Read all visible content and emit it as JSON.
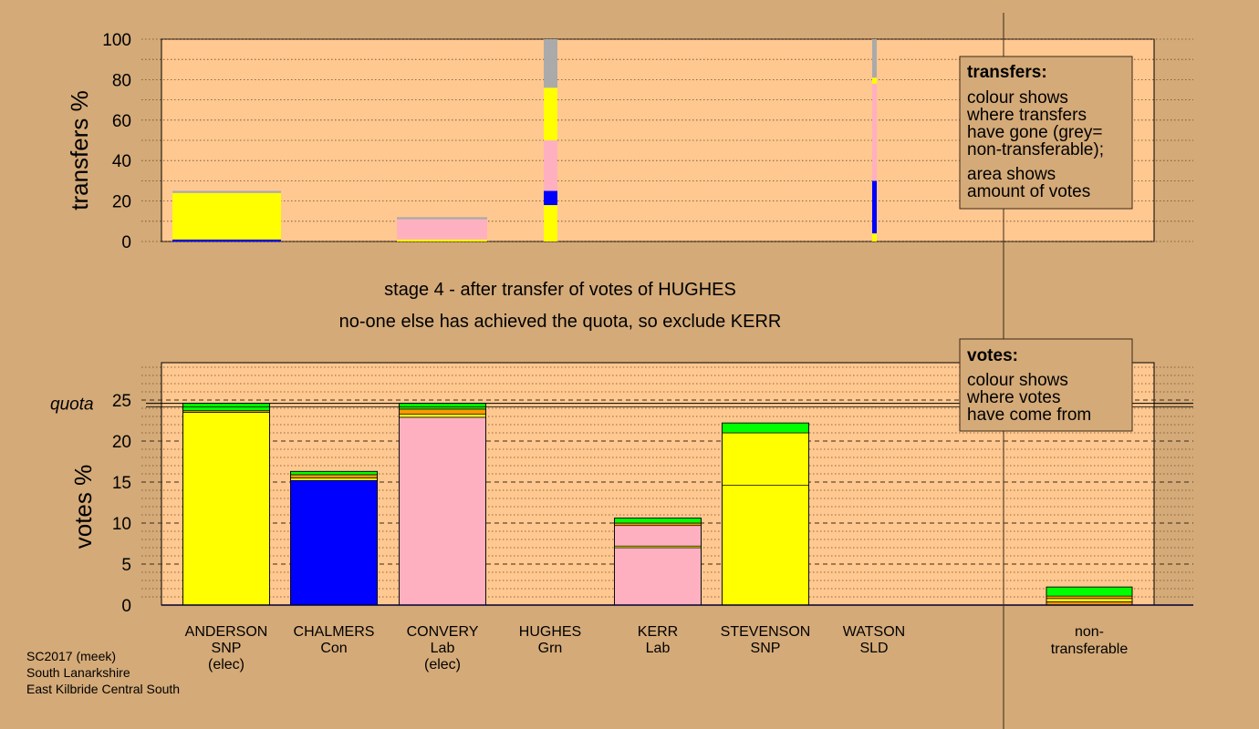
{
  "colors": {
    "background": "#d4aa78",
    "panel": "#ffc890",
    "SNP": "#ffff00",
    "Con": "#0000ff",
    "Lab": "#ffb0c0",
    "Grn": "#00ff00",
    "SLD": "#ff9900",
    "nontransferable": "#aaaaaa"
  },
  "heading": {
    "stage": "stage 4 - after transfer of votes of HUGHES",
    "action": "no-one else has achieved the quota, so exclude KERR"
  },
  "footer": [
    "SC2017 (meek)",
    "South Lanarkshire",
    "East Kilbride Central South"
  ],
  "legend_transfers": {
    "title": "transfers:",
    "lines1": [
      "colour shows",
      "where transfers",
      "have gone (grey=",
      "non-transferable);"
    ],
    "lines2": [
      "area shows",
      "amount of votes"
    ]
  },
  "legend_votes": {
    "title": "votes:",
    "lines": [
      "colour shows",
      "where votes",
      "have come from"
    ]
  },
  "chart_data": [
    {
      "type": "bar",
      "name": "transfers",
      "ylabel": "transfers %",
      "ylim": [
        0,
        100
      ],
      "yticks": [
        0,
        20,
        40,
        60,
        80,
        100
      ],
      "bars": [
        {
          "candidate": "ANDERSON",
          "segments": [
            {
              "party": "Con",
              "value": 1
            },
            {
              "party": "SNP",
              "value": 23
            },
            {
              "party": "nontransferable",
              "value": 1
            }
          ]
        },
        {
          "candidate": "CONVERY",
          "segments": [
            {
              "party": "SNP",
              "value": 1
            },
            {
              "party": "Lab",
              "value": 10
            },
            {
              "party": "nontransferable",
              "value": 1
            }
          ]
        },
        {
          "candidate": "HUGHES",
          "segments": [
            {
              "party": "SNP",
              "value": 18
            },
            {
              "party": "Con",
              "value": 7
            },
            {
              "party": "Lab",
              "value": 25
            },
            {
              "party": "SNP",
              "value": 26
            },
            {
              "party": "nontransferable",
              "value": 24
            }
          ]
        },
        {
          "candidate": "WATSON",
          "segments": [
            {
              "party": "SNP",
              "value": 4
            },
            {
              "party": "Con",
              "value": 26
            },
            {
              "party": "Lab",
              "value": 48
            },
            {
              "party": "SNP",
              "value": 3
            },
            {
              "party": "nontransferable",
              "value": 19
            }
          ]
        }
      ]
    },
    {
      "type": "bar",
      "name": "votes",
      "ylabel": "votes %",
      "ylim": [
        0,
        28
      ],
      "yticks": [
        0,
        5,
        10,
        15,
        20,
        25
      ],
      "quota": 24.6,
      "quota_label": "quota",
      "candidates": [
        {
          "name": "ANDERSON",
          "party": "SNP",
          "status": "(elec)",
          "segments": [
            {
              "party": "SNP",
              "value": 23.5
            },
            {
              "party": "SLD",
              "value": 0.2
            },
            {
              "party": "Grn",
              "value": 0.9
            }
          ]
        },
        {
          "name": "CHALMERS",
          "party": "Con",
          "status": "",
          "segments": [
            {
              "party": "Con",
              "value": 15.2
            },
            {
              "party": "SNP",
              "value": 0.3
            },
            {
              "party": "SLD",
              "value": 0.4
            },
            {
              "party": "Grn",
              "value": 0.4
            }
          ]
        },
        {
          "name": "CONVERY",
          "party": "Lab",
          "status": "(elec)",
          "segments": [
            {
              "party": "Lab",
              "value": 22.9
            },
            {
              "party": "SNP",
              "value": 0.4
            },
            {
              "party": "SLD",
              "value": 0.6
            },
            {
              "party": "Grn",
              "value": 0.7
            }
          ]
        },
        {
          "name": "HUGHES",
          "party": "Grn",
          "status": "",
          "segments": []
        },
        {
          "name": "KERR",
          "party": "Lab",
          "status": "",
          "segments": [
            {
              "party": "Lab",
              "value": 7.0
            },
            {
              "party": "SNP",
              "value": 0.2
            },
            {
              "party": "Lab",
              "value": 2.5
            },
            {
              "party": "SLD",
              "value": 0.3
            },
            {
              "party": "Grn",
              "value": 0.6
            }
          ]
        },
        {
          "name": "STEVENSON",
          "party": "SNP",
          "status": "",
          "segments": [
            {
              "party": "SNP",
              "value": 14.6
            },
            {
              "party": "SNP",
              "value": 6.4
            },
            {
              "party": "Grn",
              "value": 1.2
            }
          ]
        },
        {
          "name": "WATSON",
          "party": "SLD",
          "status": "",
          "segments": []
        },
        {
          "name": "non-",
          "party": "transferable",
          "status": "",
          "segments": [
            {
              "party": "SLD",
              "value": 0.4
            },
            {
              "party": "SNP",
              "value": 0.4
            },
            {
              "party": "SLD",
              "value": 0.3
            },
            {
              "party": "Grn",
              "value": 1.1
            }
          ]
        }
      ]
    }
  ]
}
